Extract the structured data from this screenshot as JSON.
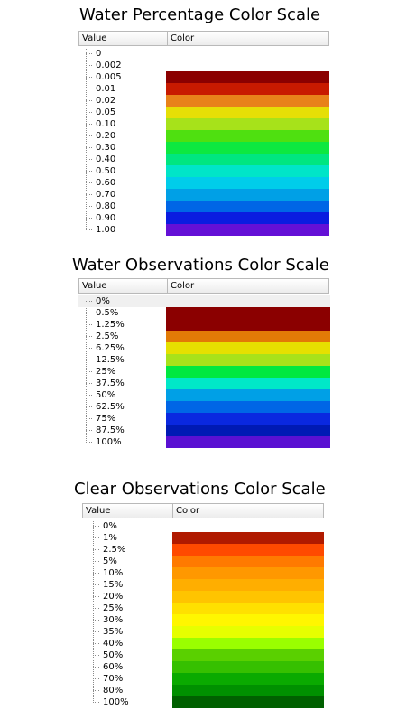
{
  "panels": [
    {
      "title": "Water Percentage Color Scale",
      "header": {
        "value_label": "Value",
        "color_label": "Color"
      },
      "rows": [
        {
          "value": "0",
          "color": ""
        },
        {
          "value": "0.002",
          "color": ""
        },
        {
          "value": "0.005",
          "color": "#8b0000"
        },
        {
          "value": "0.01",
          "color": "#c81a00"
        },
        {
          "value": "0.02",
          "color": "#e8821a"
        },
        {
          "value": "0.05",
          "color": "#e6df06"
        },
        {
          "value": "0.10",
          "color": "#a7e21a"
        },
        {
          "value": "0.20",
          "color": "#4fe010"
        },
        {
          "value": "0.30",
          "color": "#0de840"
        },
        {
          "value": "0.40",
          "color": "#00e680"
        },
        {
          "value": "0.50",
          "color": "#00e5c8"
        },
        {
          "value": "0.60",
          "color": "#00cdea"
        },
        {
          "value": "0.70",
          "color": "#00a0e6"
        },
        {
          "value": "0.80",
          "color": "#0066e6"
        },
        {
          "value": "0.90",
          "color": "#0a1ce0"
        },
        {
          "value": "1.00",
          "color": "#6410d6"
        }
      ]
    },
    {
      "title": "Water Observations Color Scale",
      "header": {
        "value_label": "Value",
        "color_label": "Color"
      },
      "rows": [
        {
          "value": "0%",
          "color": ""
        },
        {
          "value": "0.5%",
          "color": "#8b0000"
        },
        {
          "value": "1.25%",
          "color": "#8b0000"
        },
        {
          "value": "2.5%",
          "color": "#e27a06"
        },
        {
          "value": "6.25%",
          "color": "#e6e000"
        },
        {
          "value": "12.5%",
          "color": "#a8e21a"
        },
        {
          "value": "25%",
          "color": "#00e840"
        },
        {
          "value": "37.5%",
          "color": "#00e8c8"
        },
        {
          "value": "50%",
          "color": "#00a0e6"
        },
        {
          "value": "62.5%",
          "color": "#0066e6"
        },
        {
          "value": "75%",
          "color": "#0a28e0"
        },
        {
          "value": "87.5%",
          "color": "#001ab4"
        },
        {
          "value": "100%",
          "color": "#5a10d2"
        }
      ]
    },
    {
      "title": "Clear Observations Color Scale",
      "header": {
        "value_label": "Value",
        "color_label": "Color"
      },
      "rows": [
        {
          "value": "0%",
          "color": ""
        },
        {
          "value": "1%",
          "color": "#b01a00"
        },
        {
          "value": "2.5%",
          "color": "#ff4a00"
        },
        {
          "value": "5%",
          "color": "#ff7a00"
        },
        {
          "value": "10%",
          "color": "#ff9800"
        },
        {
          "value": "15%",
          "color": "#ffae00"
        },
        {
          "value": "20%",
          "color": "#ffc400"
        },
        {
          "value": "25%",
          "color": "#ffe000"
        },
        {
          "value": "30%",
          "color": "#fff600"
        },
        {
          "value": "35%",
          "color": "#e6ff00"
        },
        {
          "value": "40%",
          "color": "#9aff00"
        },
        {
          "value": "50%",
          "color": "#5ad000"
        },
        {
          "value": "60%",
          "color": "#36c000"
        },
        {
          "value": "70%",
          "color": "#0aaa00"
        },
        {
          "value": "80%",
          "color": "#009000"
        },
        {
          "value": "100%",
          "color": "#006000"
        }
      ]
    }
  ]
}
